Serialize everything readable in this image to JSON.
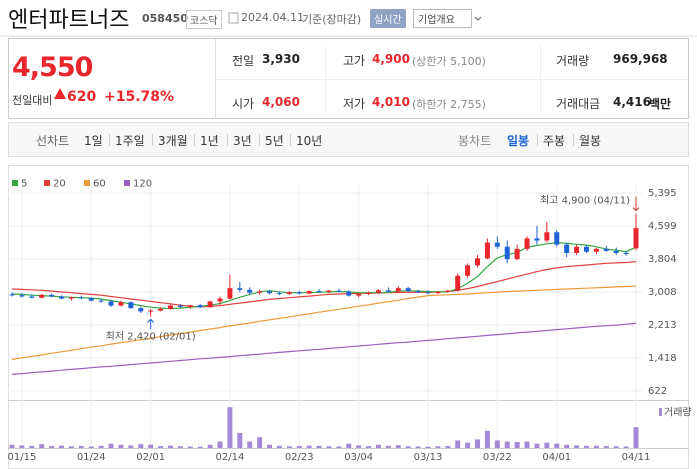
{
  "header": {
    "title": "엔터파트너즈",
    "code": "058450",
    "market": "코스닥",
    "date": "2024.04.11",
    "basis": "기준(장마감)",
    "realtime_button": "실시간",
    "company_button": "기업개요"
  },
  "price": {
    "current": "4,550",
    "change_label": "전일대비",
    "change": "620",
    "change_pct": "+15.78%"
  },
  "stats": [
    {
      "label": "전일",
      "value": "3,930",
      "color": "#222222"
    },
    {
      "label": "고가",
      "value": "4,900",
      "note": "(상한가 5,100)",
      "color": "#e8262b"
    },
    {
      "label": "거래량",
      "value": "969,968",
      "color": "#222222"
    },
    {
      "label": "시가",
      "value": "4,060",
      "color": "#e8262b"
    },
    {
      "label": "저가",
      "value": "4,010",
      "note": "(하한가 2,755)",
      "color": "#e8262b"
    },
    {
      "label": "거래대금",
      "value": "4,416",
      "unit": "백만",
      "color": "#222222"
    }
  ],
  "tabs": {
    "line_label": "선차트",
    "line_tabs": [
      "1일",
      "1주일",
      "3개월",
      "1년",
      "3년",
      "5년",
      "10년"
    ],
    "candle_label": "봉차트",
    "candle_tabs": [
      "일봉",
      "주봉",
      "월봉"
    ],
    "active": "일봉"
  },
  "chart_data": {
    "type": "candlestick",
    "categories": [
      null,
      "01/15",
      null,
      null,
      null,
      null,
      null,
      null,
      "01/24",
      null,
      null,
      null,
      null,
      null,
      "02/01",
      null,
      null,
      null,
      null,
      null,
      null,
      null,
      "02/14",
      null,
      null,
      null,
      null,
      null,
      null,
      "02/23",
      null,
      null,
      null,
      null,
      null,
      "03/04",
      null,
      null,
      null,
      null,
      null,
      null,
      "03/13",
      null,
      null,
      null,
      null,
      null,
      null,
      "03/22",
      null,
      null,
      null,
      null,
      null,
      "04/01",
      null,
      null,
      null,
      null,
      null,
      null,
      null,
      "04/11"
    ],
    "candles": [
      [
        2950,
        3000,
        2900,
        2930
      ],
      [
        2930,
        2980,
        2880,
        2900
      ],
      [
        2900,
        2950,
        2850,
        2870
      ],
      [
        2870,
        2960,
        2850,
        2940
      ],
      [
        2940,
        2970,
        2880,
        2900
      ],
      [
        2900,
        2930,
        2830,
        2850
      ],
      [
        2850,
        2900,
        2800,
        2880
      ],
      [
        2880,
        2920,
        2830,
        2860
      ],
      [
        2860,
        2880,
        2780,
        2800
      ],
      [
        2800,
        2850,
        2750,
        2780
      ],
      [
        2780,
        2800,
        2650,
        2680
      ],
      [
        2680,
        2800,
        2660,
        2760
      ],
      [
        2760,
        2780,
        2600,
        2620
      ],
      [
        2620,
        2650,
        2500,
        2540
      ],
      [
        2540,
        2600,
        2420,
        2560
      ],
      [
        2560,
        2640,
        2540,
        2600
      ],
      [
        2600,
        2700,
        2580,
        2680
      ],
      [
        2680,
        2720,
        2620,
        2650
      ],
      [
        2650,
        2700,
        2600,
        2690
      ],
      [
        2690,
        2720,
        2620,
        2640
      ],
      [
        2640,
        2800,
        2630,
        2780
      ],
      [
        2780,
        2900,
        2700,
        2850
      ],
      [
        2850,
        3420,
        2820,
        3100
      ],
      [
        3100,
        3250,
        3000,
        3060
      ],
      [
        3060,
        3120,
        2950,
        2990
      ],
      [
        2990,
        3060,
        2940,
        3020
      ],
      [
        3020,
        3050,
        2950,
        2980
      ],
      [
        2980,
        3020,
        2930,
        2960
      ],
      [
        2960,
        3030,
        2940,
        3000
      ],
      [
        3000,
        3040,
        2950,
        2970
      ],
      [
        2970,
        3050,
        2960,
        3030
      ],
      [
        3030,
        3080,
        2990,
        3010
      ],
      [
        3010,
        3060,
        2980,
        3040
      ],
      [
        3040,
        3090,
        3000,
        3020
      ],
      [
        3020,
        3050,
        2900,
        2920
      ],
      [
        2920,
        2980,
        2880,
        2960
      ],
      [
        2960,
        3020,
        2930,
        2990
      ],
      [
        2990,
        3080,
        2970,
        3050
      ],
      [
        3050,
        3120,
        3000,
        3020
      ],
      [
        3020,
        3150,
        3000,
        3100
      ],
      [
        3100,
        3130,
        3010,
        3030
      ],
      [
        3030,
        3060,
        2980,
        3000
      ],
      [
        3000,
        3040,
        2950,
        2980
      ],
      [
        2980,
        3030,
        2960,
        3010
      ],
      [
        3010,
        3060,
        2990,
        3040
      ],
      [
        3040,
        3460,
        3020,
        3400
      ],
      [
        3400,
        3700,
        3350,
        3650
      ],
      [
        3650,
        3900,
        3600,
        3820
      ],
      [
        3820,
        4300,
        3800,
        4200
      ],
      [
        4200,
        4350,
        4050,
        4100
      ],
      [
        4100,
        4250,
        3700,
        3800
      ],
      [
        3800,
        4150,
        3780,
        4050
      ],
      [
        4050,
        4350,
        4000,
        4300
      ],
      [
        4300,
        4600,
        4150,
        4250
      ],
      [
        4250,
        4700,
        4200,
        4450
      ],
      [
        4450,
        4500,
        4100,
        4150
      ],
      [
        4150,
        4200,
        3850,
        3950
      ],
      [
        3950,
        4150,
        3900,
        4100
      ],
      [
        4100,
        4150,
        3950,
        3980
      ],
      [
        3980,
        4080,
        3920,
        4050
      ],
      [
        4050,
        4120,
        3980,
        4000
      ],
      [
        4000,
        4080,
        3900,
        3950
      ],
      [
        3950,
        4000,
        3880,
        3930
      ],
      [
        4060,
        4900,
        4010,
        4550
      ]
    ],
    "candle_colors": {
      "up": "#e8262b",
      "down": "#1e63d6"
    },
    "series": [
      {
        "name": "5",
        "color": "#35a845",
        "values": [
          2960,
          2950,
          2930,
          2920,
          2910,
          2890,
          2880,
          2870,
          2860,
          2840,
          2800,
          2760,
          2720,
          2680,
          2640,
          2620,
          2610,
          2620,
          2640,
          2660,
          2690,
          2730,
          2800,
          2880,
          2950,
          3010,
          3040,
          3010,
          2990,
          2990,
          2990,
          3000,
          3010,
          3020,
          3010,
          2990,
          2990,
          2990,
          3000,
          3030,
          3040,
          3030,
          3020,
          3010,
          3010,
          3090,
          3220,
          3380,
          3620,
          3830,
          3910,
          3960,
          4090,
          4130,
          4170,
          4200,
          4180,
          4160,
          4140,
          4100,
          4040,
          4020,
          3980,
          4090
        ]
      },
      {
        "name": "20",
        "color": "#e0413c",
        "values": [
          3080,
          3070,
          3060,
          3050,
          3030,
          3010,
          2990,
          2970,
          2950,
          2930,
          2900,
          2870,
          2840,
          2810,
          2780,
          2750,
          2720,
          2690,
          2660,
          2650,
          2660,
          2680,
          2710,
          2740,
          2770,
          2800,
          2830,
          2850,
          2870,
          2890,
          2910,
          2930,
          2950,
          2960,
          2970,
          2975,
          2980,
          2985,
          2990,
          2995,
          3000,
          3000,
          3000,
          3010,
          3020,
          3050,
          3090,
          3140,
          3200,
          3260,
          3320,
          3380,
          3440,
          3500,
          3550,
          3590,
          3620,
          3640,
          3660,
          3680,
          3700,
          3710,
          3720,
          3740
        ]
      },
      {
        "name": "60",
        "color": "#ee9a3a",
        "values": [
          1380,
          1420,
          1455,
          1490,
          1530,
          1565,
          1600,
          1640,
          1675,
          1710,
          1750,
          1785,
          1820,
          1860,
          1895,
          1930,
          1970,
          2005,
          2040,
          2080,
          2115,
          2150,
          2190,
          2225,
          2260,
          2300,
          2335,
          2370,
          2410,
          2445,
          2480,
          2520,
          2555,
          2590,
          2630,
          2665,
          2700,
          2740,
          2775,
          2810,
          2850,
          2885,
          2920,
          2930,
          2940,
          2950,
          2960,
          2975,
          2990,
          3005,
          3020,
          3030,
          3040,
          3050,
          3060,
          3070,
          3080,
          3090,
          3100,
          3110,
          3120,
          3130,
          3140,
          3150
        ]
      },
      {
        "name": "120",
        "color": "#9a5fc0",
        "values": [
          1020,
          1040,
          1060,
          1080,
          1100,
          1120,
          1140,
          1160,
          1180,
          1200,
          1215,
          1235,
          1255,
          1275,
          1295,
          1315,
          1335,
          1355,
          1375,
          1395,
          1410,
          1430,
          1450,
          1470,
          1490,
          1510,
          1530,
          1550,
          1570,
          1590,
          1605,
          1625,
          1645,
          1665,
          1685,
          1705,
          1725,
          1745,
          1765,
          1785,
          1800,
          1820,
          1840,
          1860,
          1880,
          1900,
          1920,
          1940,
          1960,
          1980,
          2000,
          2020,
          2040,
          2060,
          2080,
          2100,
          2120,
          2140,
          2160,
          2180,
          2195,
          2210,
          2230,
          2250
        ]
      }
    ],
    "ylim": [
      450,
      5590
    ],
    "yticks": [
      {
        "value": 5395,
        "label": "5,395"
      },
      {
        "value": 4599,
        "label": "4,599"
      },
      {
        "value": 3804,
        "label": "3,804"
      },
      {
        "value": 3008,
        "label": "3,008"
      },
      {
        "value": 2213,
        "label": "2,213"
      },
      {
        "value": 1418,
        "label": "1,418"
      },
      622
    ],
    "grid": true,
    "annotations": {
      "high": "최고 4,900 (04/11)",
      "low": "최저 2,420 (02/01)"
    },
    "volume": {
      "label": "거래량",
      "color": "#a48ad6",
      "ylim": [
        0,
        2000000
      ],
      "values": [
        150000,
        120000,
        100000,
        180000,
        90000,
        110000,
        80000,
        90000,
        70000,
        100000,
        200000,
        150000,
        120000,
        180000,
        160000,
        90000,
        110000,
        80000,
        70000,
        60000,
        150000,
        300000,
        1900000,
        700000,
        300000,
        500000,
        150000,
        100000,
        80000,
        90000,
        110000,
        100000,
        80000,
        70000,
        200000,
        120000,
        90000,
        150000,
        100000,
        130000,
        80000,
        70000,
        60000,
        80000,
        90000,
        350000,
        250000,
        400000,
        800000,
        350000,
        300000,
        280000,
        300000,
        200000,
        250000,
        200000,
        150000,
        120000,
        100000,
        110000,
        90000,
        80000,
        70000,
        969968
      ]
    }
  }
}
